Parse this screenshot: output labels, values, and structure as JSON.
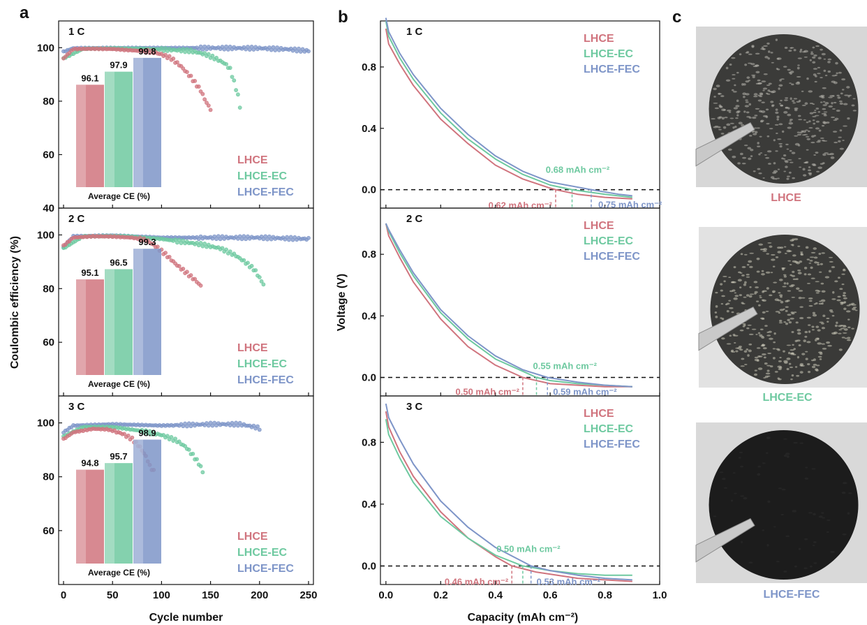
{
  "colors": {
    "LHCE": "#d0747e",
    "LHCE-EC": "#6ec9a0",
    "LHCE-FEC": "#7e95c8"
  },
  "panel_labels": {
    "a": "a",
    "b": "b",
    "c": "c"
  },
  "chart_data": [
    {
      "panel": "a",
      "type": "scatter",
      "xlabel": "Cycle number",
      "ylabel": "Coulombic efficiency (%)",
      "xlim": [
        -5,
        255
      ],
      "xticks": [
        "0",
        "50",
        "100",
        "150",
        "200",
        "250"
      ],
      "ylim": [
        40,
        110
      ],
      "yticks": [
        "40",
        "60",
        "80",
        "100"
      ],
      "subplots": [
        {
          "rate": "1 C",
          "legend": [
            "LHCE",
            "LHCE-EC",
            "LHCE-FEC"
          ],
          "series": [
            {
              "name": "LHCE",
              "x": [
                0,
                10,
                30,
                50,
                70,
                90,
                100,
                110,
                120,
                130,
                140,
                145,
                150
              ],
              "y": [
                96,
                99.5,
                99.6,
                99.5,
                99,
                98.5,
                97.5,
                96,
                93,
                89,
                84,
                80,
                77
              ]
            },
            {
              "name": "LHCE-EC",
              "x": [
                0,
                20,
                50,
                80,
                110,
                130,
                145,
                155,
                165,
                170,
                175,
                178,
                180
              ],
              "y": [
                96,
                99.6,
                99.8,
                99.6,
                99.2,
                98.8,
                97.5,
                96,
                94,
                92,
                86,
                82,
                78
              ]
            },
            {
              "name": "LHCE-FEC",
              "x": [
                0,
                10,
                50,
                100,
                150,
                200,
                230,
                250
              ],
              "y": [
                98.5,
                99.8,
                99.9,
                99.9,
                99.9,
                99.8,
                99.4,
                98.8
              ]
            }
          ],
          "inset": {
            "title": "Average CE (%)",
            "values": [
              96.1,
              97.9,
              99.8
            ],
            "labels": [
              "96.1",
              "97.9",
              "99.8"
            ]
          }
        },
        {
          "rate": "2 C",
          "legend": [
            "LHCE",
            "LHCE-EC",
            "LHCE-FEC"
          ],
          "series": [
            {
              "name": "LHCE",
              "x": [
                0,
                10,
                30,
                50,
                70,
                85,
                95,
                105,
                115,
                125,
                135,
                140
              ],
              "y": [
                96,
                99,
                99.5,
                99.4,
                99,
                98,
                95.5,
                92.5,
                89,
                86,
                83,
                81
              ]
            },
            {
              "name": "LHCE-EC",
              "x": [
                0,
                20,
                60,
                100,
                140,
                160,
                175,
                185,
                195,
                200,
                205
              ],
              "y": [
                95,
                99.5,
                99.6,
                98.5,
                96.5,
                95,
                92.5,
                90,
                87,
                84,
                81
              ]
            },
            {
              "name": "LHCE-FEC",
              "x": [
                0,
                10,
                50,
                100,
                150,
                200,
                250
              ],
              "y": [
                95.5,
                99.5,
                99.8,
                99,
                99,
                99,
                98.5
              ]
            }
          ],
          "inset": {
            "title": "Average CE (%)",
            "values": [
              95.1,
              96.5,
              99.3
            ],
            "labels": [
              "95.1",
              "96.5",
              "99.3"
            ]
          }
        },
        {
          "rate": "3 C",
          "legend": [
            "LHCE",
            "LHCE-EC",
            "LHCE-FEC"
          ],
          "series": [
            {
              "name": "LHCE",
              "x": [
                0,
                10,
                30,
                45,
                60,
                70,
                78,
                85,
                88,
                92
              ],
              "y": [
                94,
                96.5,
                97.8,
                97.6,
                96,
                94,
                91,
                87,
                84,
                82
              ]
            },
            {
              "name": "LHCE-EC",
              "x": [
                0,
                20,
                50,
                80,
                100,
                115,
                125,
                132,
                138,
                142
              ],
              "y": [
                95,
                98.5,
                98.5,
                97,
                95.5,
                93.5,
                91,
                88,
                85,
                82
              ]
            },
            {
              "name": "LHCE-FEC",
              "x": [
                0,
                10,
                50,
                100,
                150,
                180,
                195,
                200
              ],
              "y": [
                96.5,
                99,
                99.5,
                99,
                99.5,
                99.5,
                98.5,
                98
              ]
            }
          ],
          "inset": {
            "title": "Average CE (%)",
            "values": [
              94.8,
              95.7,
              98.9
            ],
            "labels": [
              "94.8",
              "95.7",
              "98.9"
            ]
          }
        }
      ]
    },
    {
      "panel": "b",
      "type": "line",
      "xlabel": "Capacity (mAh cm⁻²)",
      "ylabel": "Voltage (V)",
      "xlim": [
        -0.02,
        1.0
      ],
      "xticks": [
        "0.0",
        "0.2",
        "0.4",
        "0.6",
        "0.8",
        "1.0"
      ],
      "ylim": [
        -0.12,
        1.1
      ],
      "yticks": [
        "0.0",
        "0.4",
        "0.8"
      ],
      "subplots": [
        {
          "rate": "1 C",
          "legend": [
            "LHCE",
            "LHCE-EC",
            "LHCE-FEC"
          ],
          "series": [
            {
              "name": "LHCE",
              "x": [
                0,
                0.01,
                0.05,
                0.1,
                0.2,
                0.3,
                0.4,
                0.5,
                0.6,
                0.62,
                0.7,
                0.8,
                0.9
              ],
              "y": [
                1.05,
                0.95,
                0.82,
                0.68,
                0.46,
                0.3,
                0.16,
                0.07,
                0.01,
                0.0,
                -0.03,
                -0.05,
                -0.06
              ]
            },
            {
              "name": "LHCE-EC",
              "x": [
                0,
                0.01,
                0.05,
                0.1,
                0.2,
                0.3,
                0.4,
                0.5,
                0.6,
                0.68,
                0.8,
                0.9
              ],
              "y": [
                1.1,
                1.0,
                0.86,
                0.72,
                0.5,
                0.33,
                0.2,
                0.1,
                0.03,
                0.0,
                -0.03,
                -0.05
              ]
            },
            {
              "name": "LHCE-FEC",
              "x": [
                0,
                0.01,
                0.05,
                0.1,
                0.2,
                0.3,
                0.4,
                0.5,
                0.6,
                0.75,
                0.85,
                0.9
              ],
              "y": [
                1.12,
                1.03,
                0.89,
                0.75,
                0.53,
                0.36,
                0.22,
                0.12,
                0.05,
                0.0,
                -0.03,
                -0.04
              ]
            }
          ],
          "markers": [
            {
              "name": "LHCE",
              "x": 0.62,
              "label": "0.62 mAh cm⁻²"
            },
            {
              "name": "LHCE-EC",
              "x": 0.68,
              "label": "0.68 mAh cm⁻²"
            },
            {
              "name": "LHCE-FEC",
              "x": 0.75,
              "label": "0.75 mAh cm⁻²"
            }
          ]
        },
        {
          "rate": "2 C",
          "legend": [
            "LHCE",
            "LHCE-EC",
            "LHCE-FEC"
          ],
          "series": [
            {
              "name": "LHCE",
              "x": [
                0,
                0.01,
                0.05,
                0.1,
                0.2,
                0.3,
                0.4,
                0.5,
                0.6,
                0.7,
                0.8,
                0.9
              ],
              "y": [
                1.0,
                0.92,
                0.78,
                0.62,
                0.38,
                0.2,
                0.08,
                0.0,
                -0.04,
                -0.05,
                -0.06,
                -0.06
              ]
            },
            {
              "name": "LHCE-EC",
              "x": [
                0,
                0.01,
                0.05,
                0.1,
                0.2,
                0.3,
                0.4,
                0.55,
                0.6,
                0.7,
                0.8,
                0.9
              ],
              "y": [
                1.0,
                0.95,
                0.81,
                0.66,
                0.42,
                0.25,
                0.12,
                0.0,
                -0.02,
                -0.04,
                -0.05,
                -0.06
              ]
            },
            {
              "name": "LHCE-FEC",
              "x": [
                0,
                0.01,
                0.05,
                0.1,
                0.2,
                0.3,
                0.4,
                0.5,
                0.59,
                0.7,
                0.8,
                0.9
              ],
              "y": [
                1.0,
                0.96,
                0.83,
                0.68,
                0.44,
                0.27,
                0.14,
                0.05,
                0.0,
                -0.03,
                -0.05,
                -0.06
              ]
            }
          ],
          "markers": [
            {
              "name": "LHCE",
              "x": 0.5,
              "label": "0.50 mAh cm⁻²"
            },
            {
              "name": "LHCE-EC",
              "x": 0.55,
              "label": "0.55 mAh cm⁻²"
            },
            {
              "name": "LHCE-FEC",
              "x": 0.59,
              "label": "0.59 mAh cm⁻²"
            }
          ]
        },
        {
          "rate": "3 C",
          "legend": [
            "LHCE",
            "LHCE-EC",
            "LHCE-FEC"
          ],
          "series": [
            {
              "name": "LHCE",
              "x": [
                0,
                0.01,
                0.05,
                0.1,
                0.2,
                0.3,
                0.4,
                0.46,
                0.55,
                0.7,
                0.8,
                0.9
              ],
              "y": [
                1.0,
                0.9,
                0.74,
                0.58,
                0.35,
                0.18,
                0.06,
                0.0,
                -0.04,
                -0.08,
                -0.09,
                -0.1
              ]
            },
            {
              "name": "LHCE-EC",
              "x": [
                0,
                0.01,
                0.05,
                0.1,
                0.2,
                0.3,
                0.4,
                0.5,
                0.6,
                0.7,
                0.8,
                0.9
              ],
              "y": [
                0.95,
                0.85,
                0.7,
                0.54,
                0.32,
                0.18,
                0.07,
                0.0,
                -0.03,
                -0.05,
                -0.06,
                -0.06
              ]
            },
            {
              "name": "LHCE-FEC",
              "x": [
                0,
                0.01,
                0.05,
                0.1,
                0.2,
                0.3,
                0.4,
                0.53,
                0.6,
                0.7,
                0.8,
                0.9
              ],
              "y": [
                1.05,
                0.96,
                0.82,
                0.66,
                0.42,
                0.25,
                0.12,
                0.0,
                -0.03,
                -0.06,
                -0.08,
                -0.09
              ]
            }
          ],
          "markers": [
            {
              "name": "LHCE",
              "x": 0.46,
              "label": "0.46 mAh cm⁻²"
            },
            {
              "name": "LHCE-EC",
              "x": 0.5,
              "label": "0.50 mAh cm⁻²"
            },
            {
              "name": "LHCE-FEC",
              "x": 0.53,
              "label": "0.53 mAh cm⁻²"
            }
          ]
        }
      ]
    }
  ],
  "photos": {
    "panel": "c",
    "items": [
      {
        "label": "LHCE",
        "tone": "#3b3b39",
        "dots": "#b8b6ae",
        "frame": "#d7d7d7"
      },
      {
        "label": "LHCE-EC",
        "tone": "#3a3a38",
        "dots": "#cbc8b8",
        "frame": "#e2e2e2"
      },
      {
        "label": "LHCE-FEC",
        "tone": "#1c1c1c",
        "dots": "#2c2c2c",
        "frame": "#d9d9d9"
      }
    ]
  }
}
